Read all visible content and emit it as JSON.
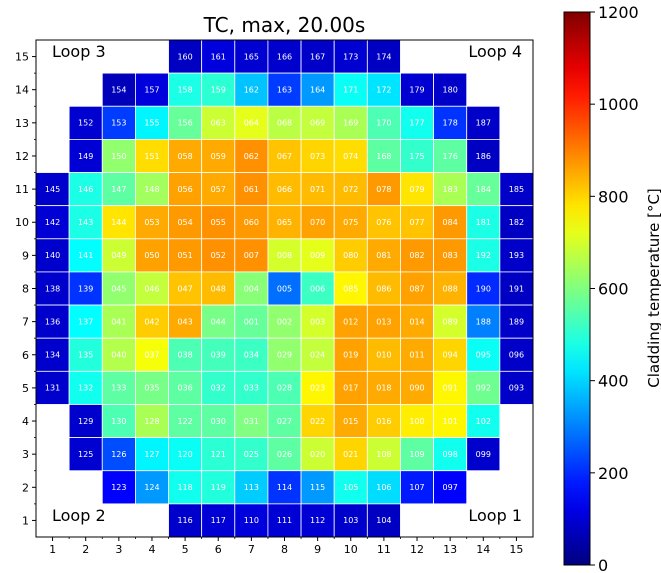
{
  "chart_data": {
    "type": "heatmap",
    "title": "TC, max, 20.00s",
    "xlabel": "",
    "ylabel": "",
    "x_ticks": [
      "1",
      "2",
      "3",
      "4",
      "5",
      "6",
      "7",
      "8",
      "9",
      "10",
      "11",
      "12",
      "13",
      "14",
      "15"
    ],
    "y_ticks": [
      "1",
      "2",
      "3",
      "4",
      "5",
      "6",
      "7",
      "8",
      "9",
      "10",
      "11",
      "12",
      "13",
      "14",
      "15"
    ],
    "corner_labels": {
      "top_left": "Loop 3",
      "top_right": "Loop 4",
      "bottom_left": "Loop 2",
      "bottom_right": "Loop 1"
    },
    "colorbar": {
      "label": "Cladding temperature [°C]",
      "min": 0,
      "max": 1200,
      "ticks": [
        "0",
        "200",
        "400",
        "600",
        "800",
        "1000",
        "1200"
      ],
      "colormap": "jet"
    },
    "grid": false,
    "rows": [
      {
        "y": 15,
        "cells": [
          [
            5,
            "160",
            80
          ],
          [
            6,
            "161",
            110
          ],
          [
            7,
            "165",
            95
          ],
          [
            8,
            "166",
            90
          ],
          [
            9,
            "167",
            85
          ],
          [
            10,
            "173",
            95
          ],
          [
            11,
            "174",
            80
          ]
        ]
      },
      {
        "y": 14,
        "cells": [
          [
            3,
            "154",
            70
          ],
          [
            4,
            "157",
            110
          ],
          [
            5,
            "158",
            480
          ],
          [
            6,
            "159",
            500
          ],
          [
            7,
            "162",
            380
          ],
          [
            8,
            "163",
            220
          ],
          [
            9,
            "164",
            330
          ],
          [
            10,
            "171",
            460
          ],
          [
            11,
            "172",
            420
          ],
          [
            12,
            "179",
            95
          ],
          [
            13,
            "180",
            85
          ]
        ]
      },
      {
        "y": 13,
        "cells": [
          [
            2,
            "152",
            95
          ],
          [
            3,
            "153",
            220
          ],
          [
            4,
            "155",
            440
          ],
          [
            5,
            "156",
            570
          ],
          [
            6,
            "063",
            690
          ],
          [
            7,
            "064",
            720
          ],
          [
            8,
            "068",
            670
          ],
          [
            9,
            "069",
            680
          ],
          [
            10,
            "169",
            650
          ],
          [
            11,
            "170",
            540
          ],
          [
            12,
            "177",
            470
          ],
          [
            13,
            "178",
            210
          ],
          [
            14,
            "187",
            85
          ]
        ]
      },
      {
        "y": 12,
        "cells": [
          [
            2,
            "149",
            100
          ],
          [
            3,
            "150",
            620
          ],
          [
            4,
            "151",
            790
          ],
          [
            5,
            "058",
            850
          ],
          [
            6,
            "059",
            850
          ],
          [
            7,
            "062",
            880
          ],
          [
            8,
            "067",
            820
          ],
          [
            9,
            "073",
            800
          ],
          [
            10,
            "074",
            790
          ],
          [
            11,
            "168",
            560
          ],
          [
            12,
            "175",
            510
          ],
          [
            13,
            "176",
            560
          ],
          [
            14,
            "186",
            80
          ]
        ]
      },
      {
        "y": 11,
        "cells": [
          [
            1,
            "145",
            90
          ],
          [
            2,
            "146",
            480
          ],
          [
            3,
            "147",
            560
          ],
          [
            4,
            "148",
            640
          ],
          [
            5,
            "056",
            860
          ],
          [
            6,
            "057",
            850
          ],
          [
            7,
            "061",
            880
          ],
          [
            8,
            "066",
            830
          ],
          [
            9,
            "071",
            830
          ],
          [
            10,
            "072",
            830
          ],
          [
            11,
            "078",
            870
          ],
          [
            12,
            "079",
            780
          ],
          [
            13,
            "183",
            650
          ],
          [
            14,
            "184",
            570
          ],
          [
            15,
            "185",
            85
          ]
        ]
      },
      {
        "y": 10,
        "cells": [
          [
            1,
            "142",
            100
          ],
          [
            2,
            "143",
            480
          ],
          [
            3,
            "144",
            780
          ],
          [
            4,
            "053",
            850
          ],
          [
            5,
            "054",
            870
          ],
          [
            6,
            "055",
            880
          ],
          [
            7,
            "060",
            870
          ],
          [
            8,
            "065",
            840
          ],
          [
            9,
            "070",
            860
          ],
          [
            10,
            "075",
            850
          ],
          [
            11,
            "076",
            820
          ],
          [
            12,
            "077",
            820
          ],
          [
            13,
            "084",
            870
          ],
          [
            14,
            "181",
            480
          ],
          [
            15,
            "182",
            80
          ]
        ]
      },
      {
        "y": 9,
        "cells": [
          [
            1,
            "140",
            90
          ],
          [
            2,
            "141",
            450
          ],
          [
            3,
            "049",
            690
          ],
          [
            4,
            "050",
            860
          ],
          [
            5,
            "051",
            870
          ],
          [
            6,
            "052",
            880
          ],
          [
            7,
            "007",
            880
          ],
          [
            8,
            "008",
            700
          ],
          [
            9,
            "009",
            720
          ],
          [
            10,
            "080",
            810
          ],
          [
            11,
            "081",
            850
          ],
          [
            12,
            "082",
            870
          ],
          [
            13,
            "083",
            870
          ],
          [
            14,
            "192",
            480
          ],
          [
            15,
            "193",
            85
          ]
        ]
      },
      {
        "y": 8,
        "cells": [
          [
            1,
            "138",
            90
          ],
          [
            2,
            "139",
            210
          ],
          [
            3,
            "045",
            620
          ],
          [
            4,
            "046",
            680
          ],
          [
            5,
            "047",
            820
          ],
          [
            6,
            "048",
            830
          ],
          [
            7,
            "004",
            610
          ],
          [
            8,
            "005",
            280
          ],
          [
            9,
            "006",
            520
          ],
          [
            10,
            "085",
            760
          ],
          [
            11,
            "086",
            830
          ],
          [
            12,
            "087",
            860
          ],
          [
            13,
            "088",
            840
          ],
          [
            14,
            "190",
            200
          ],
          [
            15,
            "191",
            80
          ]
        ]
      },
      {
        "y": 7,
        "cells": [
          [
            1,
            "136",
            90
          ],
          [
            2,
            "137",
            450
          ],
          [
            3,
            "041",
            650
          ],
          [
            4,
            "042",
            810
          ],
          [
            5,
            "043",
            850
          ],
          [
            6,
            "044",
            590
          ],
          [
            7,
            "001",
            570
          ],
          [
            8,
            "002",
            620
          ],
          [
            9,
            "003",
            700
          ],
          [
            10,
            "012",
            860
          ],
          [
            11,
            "013",
            860
          ],
          [
            12,
            "014",
            850
          ],
          [
            13,
            "089",
            700
          ],
          [
            14,
            "188",
            300
          ],
          [
            15,
            "189",
            85
          ]
        ]
      },
      {
        "y": 6,
        "cells": [
          [
            1,
            "134",
            90
          ],
          [
            2,
            "135",
            490
          ],
          [
            3,
            "040",
            660
          ],
          [
            4,
            "037",
            740
          ],
          [
            5,
            "038",
            540
          ],
          [
            6,
            "039",
            530
          ],
          [
            7,
            "034",
            520
          ],
          [
            8,
            "029",
            620
          ],
          [
            9,
            "024",
            680
          ],
          [
            10,
            "019",
            860
          ],
          [
            11,
            "010",
            830
          ],
          [
            12,
            "011",
            850
          ],
          [
            13,
            "094",
            800
          ],
          [
            14,
            "095",
            460
          ],
          [
            15,
            "096",
            85
          ]
        ]
      },
      {
        "y": 5,
        "cells": [
          [
            1,
            "131",
            90
          ],
          [
            2,
            "132",
            470
          ],
          [
            3,
            "133",
            560
          ],
          [
            4,
            "035",
            590
          ],
          [
            5,
            "036",
            560
          ],
          [
            6,
            "032",
            510
          ],
          [
            7,
            "033",
            510
          ],
          [
            8,
            "028",
            540
          ],
          [
            9,
            "023",
            760
          ],
          [
            10,
            "017",
            860
          ],
          [
            11,
            "018",
            850
          ],
          [
            12,
            "090",
            850
          ],
          [
            13,
            "091",
            760
          ],
          [
            14,
            "092",
            580
          ],
          [
            15,
            "093",
            85
          ]
        ]
      },
      {
        "y": 4,
        "cells": [
          [
            2,
            "129",
            90
          ],
          [
            3,
            "130",
            540
          ],
          [
            4,
            "128",
            650
          ],
          [
            5,
            "122",
            560
          ],
          [
            6,
            "030",
            560
          ],
          [
            7,
            "031",
            600
          ],
          [
            8,
            "027",
            560
          ],
          [
            9,
            "022",
            800
          ],
          [
            10,
            "015",
            850
          ],
          [
            11,
            "016",
            810
          ],
          [
            12,
            "100",
            770
          ],
          [
            13,
            "101",
            760
          ],
          [
            14,
            "102",
            470
          ]
        ]
      },
      {
        "y": 3,
        "cells": [
          [
            2,
            "125",
            95
          ],
          [
            3,
            "126",
            240
          ],
          [
            4,
            "127",
            440
          ],
          [
            5,
            "120",
            460
          ],
          [
            6,
            "121",
            500
          ],
          [
            7,
            "025",
            510
          ],
          [
            8,
            "026",
            560
          ],
          [
            9,
            "020",
            690
          ],
          [
            10,
            "021",
            800
          ],
          [
            11,
            "108",
            690
          ],
          [
            12,
            "109",
            560
          ],
          [
            13,
            "098",
            470
          ],
          [
            14,
            "099",
            90
          ]
        ]
      },
      {
        "y": 2,
        "cells": [
          [
            3,
            "123",
            150
          ],
          [
            4,
            "124",
            330
          ],
          [
            5,
            "118",
            470
          ],
          [
            6,
            "119",
            490
          ],
          [
            7,
            "113",
            390
          ],
          [
            8,
            "114",
            210
          ],
          [
            9,
            "115",
            330
          ],
          [
            10,
            "105",
            470
          ],
          [
            11,
            "106",
            410
          ],
          [
            12,
            "107",
            180
          ],
          [
            13,
            "097",
            150
          ]
        ]
      },
      {
        "y": 1,
        "cells": [
          [
            5,
            "116",
            90
          ],
          [
            6,
            "117",
            100
          ],
          [
            7,
            "110",
            110
          ],
          [
            8,
            "111",
            100
          ],
          [
            9,
            "112",
            100
          ],
          [
            10,
            "103",
            90
          ],
          [
            11,
            "104",
            80
          ]
        ]
      }
    ]
  }
}
